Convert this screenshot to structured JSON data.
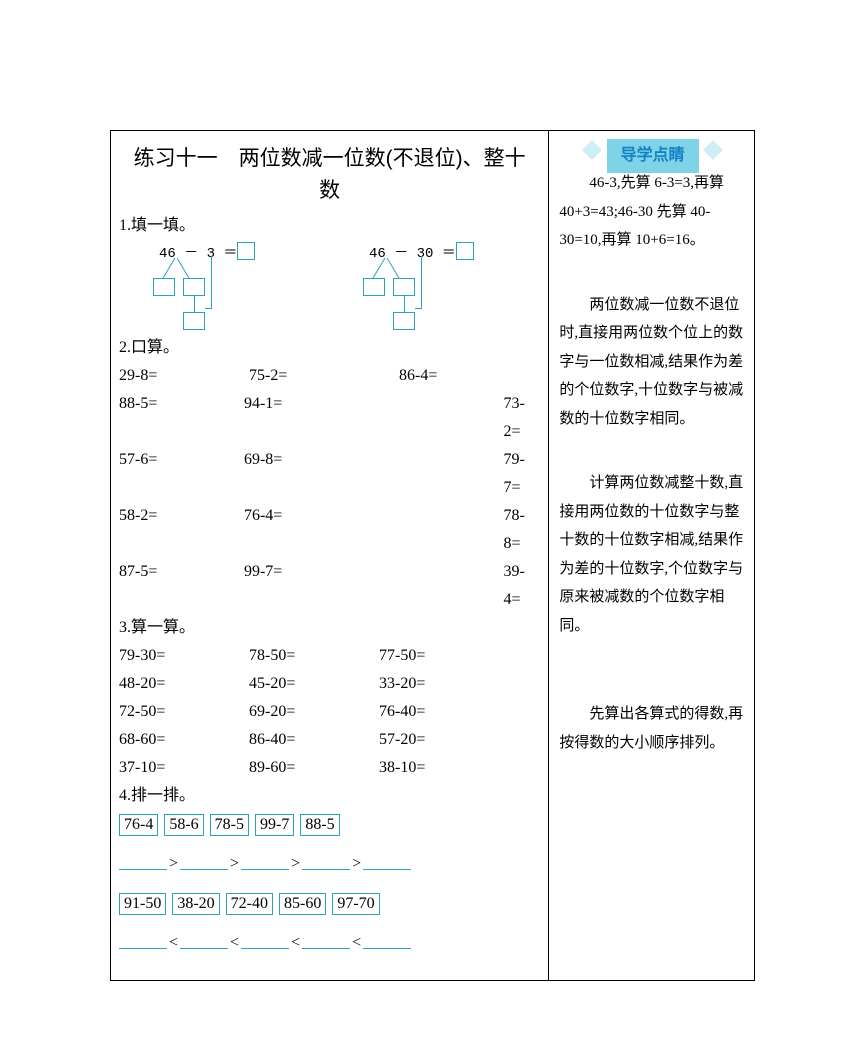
{
  "accent_color": "#2aa3b8",
  "banner_bg": "#7fd3e6",
  "banner_fg": "#1380c8",
  "title": "练习十一　两位数减一位数(不退位)、整十数",
  "q1": {
    "header": "1.填一填。",
    "diag1_expr": "46 － 3 ＝",
    "diag2_expr": "46 － 30 ＝"
  },
  "q2": {
    "header": "2.口算。",
    "rows": [
      [
        "29-8=",
        "75-2=",
        "86-4=",
        ""
      ],
      [
        "88-5=",
        "94-1=",
        "",
        "73-2="
      ],
      [
        "57-6=",
        "69-8=",
        "",
        "79-7="
      ],
      [
        "58-2=",
        "76-4=",
        "",
        "78-8="
      ],
      [
        "87-5=",
        "99-7=",
        "",
        "39-4="
      ]
    ]
  },
  "q3": {
    "header": "3.算一算。",
    "rows": [
      [
        "79-30=",
        "78-50=",
        "77-50="
      ],
      [
        "48-20=",
        "45-20=",
        "33-20="
      ],
      [
        "72-50=",
        "69-20=",
        "76-40="
      ],
      [
        "68-60=",
        "86-40=",
        "57-20="
      ],
      [
        "37-10=",
        "89-60=",
        "38-10="
      ]
    ]
  },
  "q4": {
    "header": "4.排一排。",
    "set1": [
      "76-4",
      "58-6",
      "78-5",
      "99-7",
      "88-5"
    ],
    "cmp1": ">",
    "set2": [
      "91-50",
      "38-20",
      "72-40",
      "85-60",
      "97-70"
    ],
    "cmp2": "<"
  },
  "side": {
    "banner": "导学点睛",
    "p1": "46-3,先算 6-3=3,再算 40+3=43;46-30 先算 40-30=10,再算 10+6=16。",
    "p2": "两位数减一位数不退位时,直接用两位数个位上的数字与一位数相减,结果作为差的个位数字,十位数字与被减数的十位数字相同。",
    "p3": "计算两位数减整十数,直接用两位数的十位数字与整十数的十位数字相减,结果作为差的十位数字,个位数字与原来被减数的个位数字相同。",
    "p4": "先算出各算式的得数,再按得数的大小顺序排列。"
  }
}
